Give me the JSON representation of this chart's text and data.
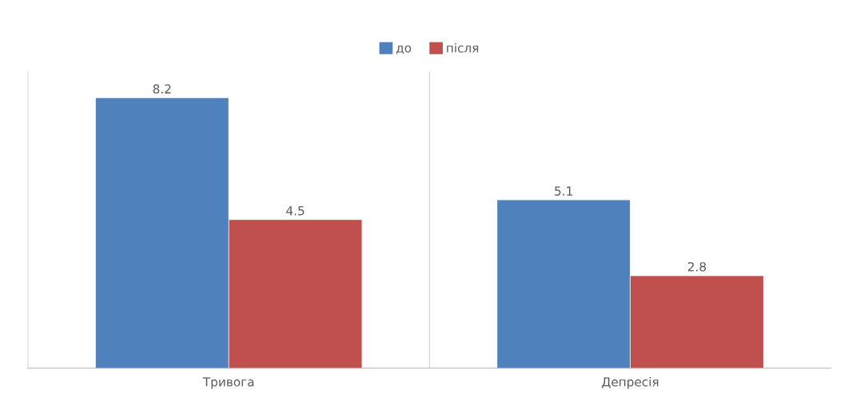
{
  "chart_data": {
    "type": "bar",
    "categories": [
      "Тривога",
      "Депресія"
    ],
    "series": [
      {
        "name": "до",
        "color": "#4f81bd",
        "values": [
          8.2,
          5.1
        ]
      },
      {
        "name": "після",
        "color": "#c0504d",
        "values": [
          4.5,
          2.8
        ]
      }
    ],
    "ylim": [
      0,
      9
    ],
    "tick_labels": "x",
    "data_labels": true,
    "grid": "x",
    "legend": "top"
  }
}
